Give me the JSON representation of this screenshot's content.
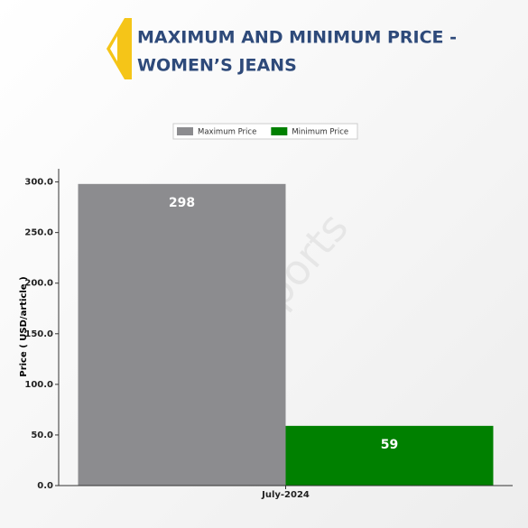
{
  "chart_data": {
    "type": "bar",
    "title": [
      "MAXIMUM AND MINIMUM PRICE -",
      "WOMEN’S JEANS"
    ],
    "watermark": "DNJ Reports",
    "y_label": "Price ( USD/article )",
    "categories": [
      "July-2024"
    ],
    "series": [
      {
        "name": "Maximum Price",
        "color": "#8c8c8f",
        "values": [
          298
        ]
      },
      {
        "name": "Minimum Price",
        "color": "#008000",
        "values": [
          59
        ]
      }
    ],
    "ylim": [
      0,
      313
    ],
    "yticks": [
      {
        "value": 0,
        "label": "0.0"
      },
      {
        "value": 50,
        "label": "50.0"
      },
      {
        "value": 100,
        "label": "100.0"
      },
      {
        "value": 150,
        "label": "150.0"
      },
      {
        "value": 200,
        "label": "200.0"
      },
      {
        "value": 250,
        "label": "250.0"
      },
      {
        "value": 300,
        "label": "300.0"
      }
    ]
  }
}
